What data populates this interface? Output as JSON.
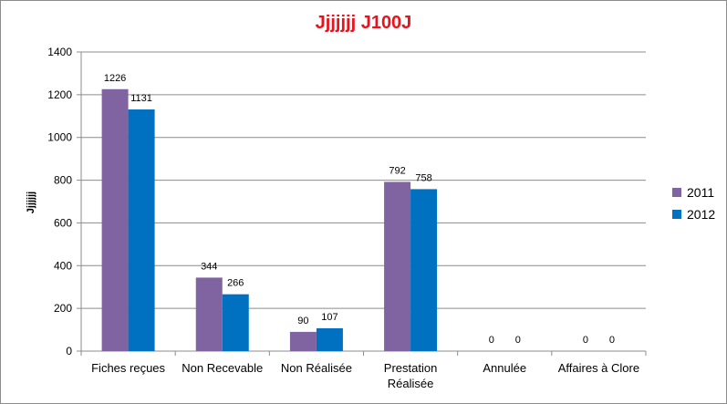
{
  "chart_data": {
    "type": "bar",
    "title": "Jjjjjjj J100J",
    "xlabel": "",
    "ylabel": "Jjjjjjj",
    "ylim": [
      0,
      1400
    ],
    "yticks": [
      "0",
      "200",
      "400",
      "600",
      "800",
      "1000",
      "1200",
      "1400"
    ],
    "categories": [
      "Fiches reçues",
      "Non Recevable",
      "Non Réalisée",
      "Prestation Réalisée",
      "Annulée",
      "Affaires à Clore"
    ],
    "series": [
      {
        "name": "2011",
        "color": "#8064a2",
        "values": [
          1226,
          344,
          90,
          792,
          0,
          0
        ]
      },
      {
        "name": "2012",
        "color": "#0070c0",
        "values": [
          1131,
          266,
          107,
          758,
          0,
          0
        ]
      }
    ],
    "grid": true,
    "legend_position": "right"
  }
}
